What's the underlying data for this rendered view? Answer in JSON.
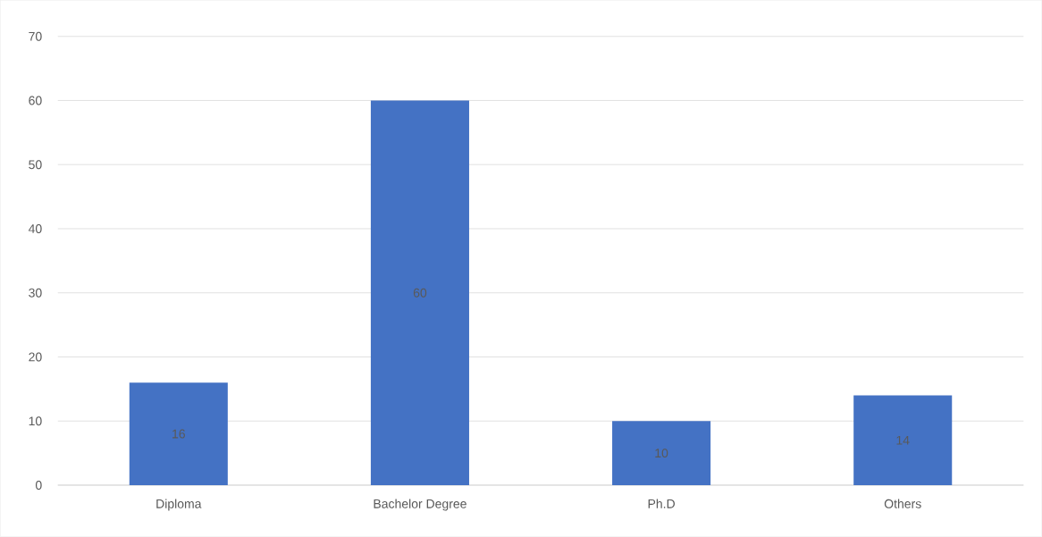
{
  "chart_data": {
    "type": "bar",
    "categories": [
      "Diploma",
      "Bachelor Degree",
      "Ph.D",
      "Others"
    ],
    "values": [
      16,
      60,
      10,
      14
    ],
    "color": "#4472c4",
    "ylim": [
      0,
      70
    ],
    "yticks": [
      0,
      10,
      20,
      30,
      40,
      50,
      60,
      70
    ],
    "grid": "y",
    "data_labels": true
  }
}
